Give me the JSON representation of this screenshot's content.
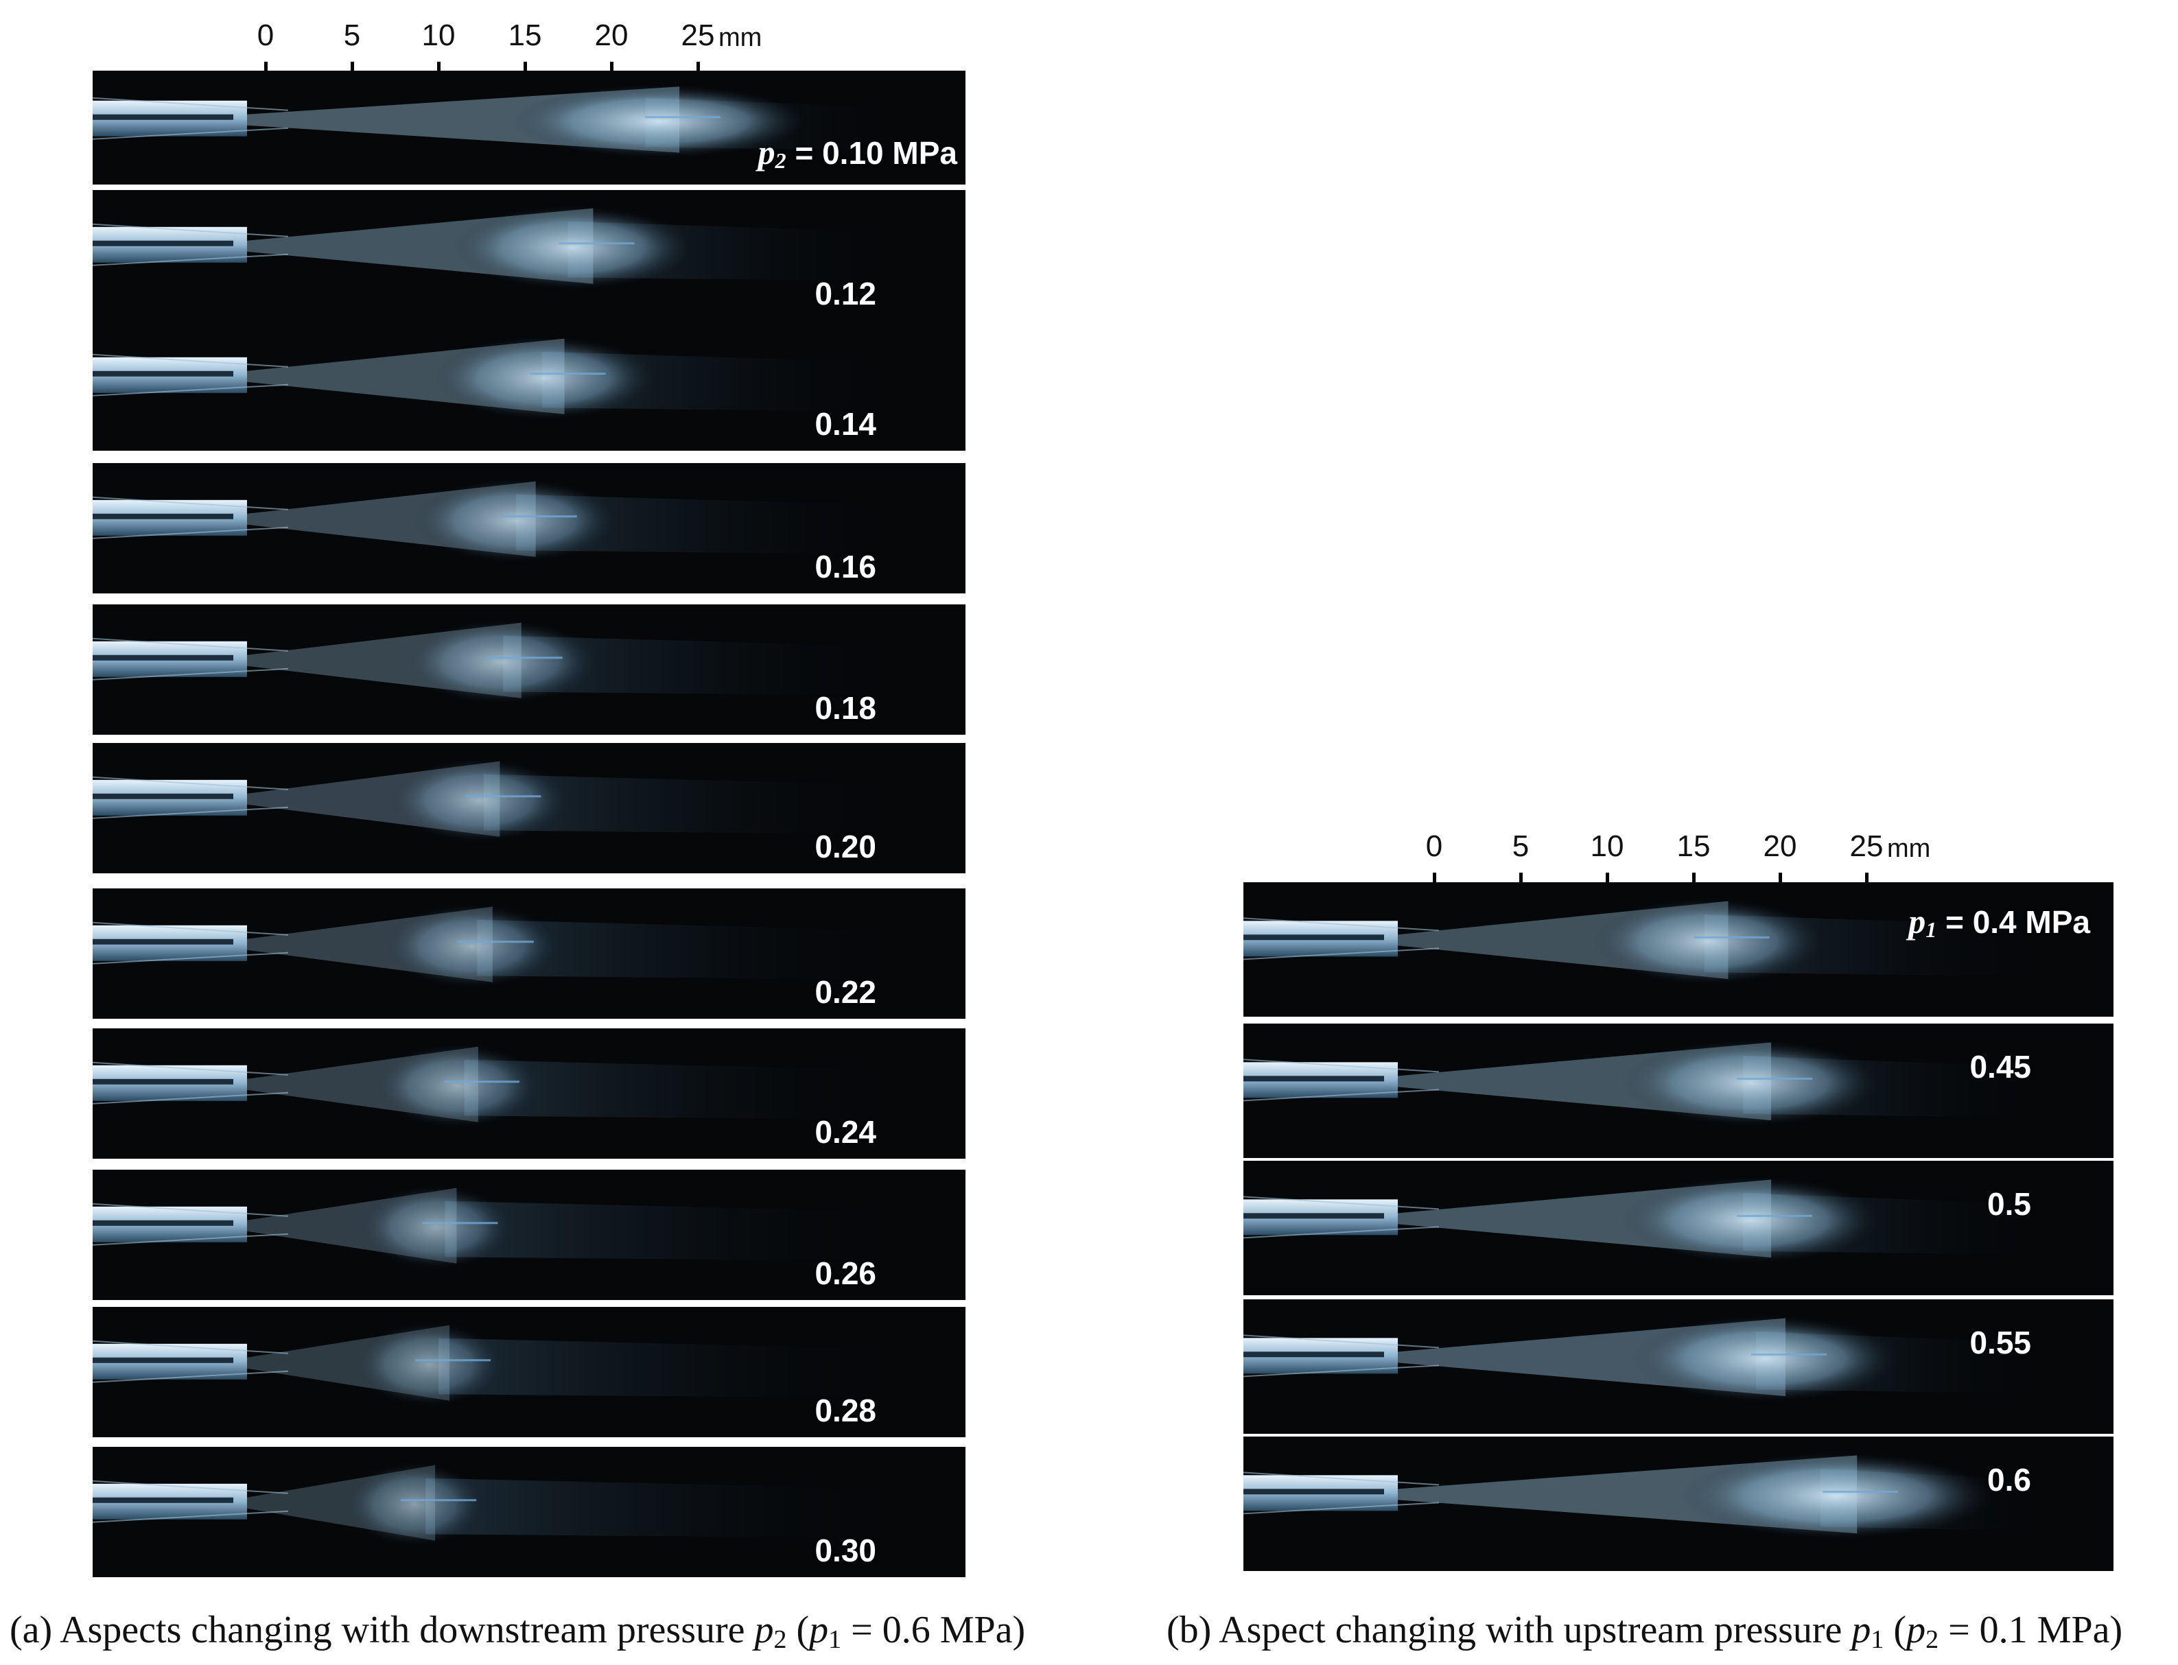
{
  "scale_bar": {
    "ticks": [
      "0",
      "5",
      "10",
      "15",
      "20",
      "25"
    ],
    "unit": "mm"
  },
  "panel_a": {
    "first_label": {
      "symbol": "p",
      "subscript": "2",
      "rest": " = 0.10 MPa"
    },
    "frames": [
      {
        "label": "",
        "plume_length": 0.64,
        "brightness": 1.0
      },
      {
        "label": "0.12",
        "plume_length": 0.52,
        "brightness": 0.92
      },
      {
        "label": "0.14",
        "plume_length": 0.48,
        "brightness": 0.88
      },
      {
        "label": "0.16",
        "plume_length": 0.44,
        "brightness": 0.8
      },
      {
        "label": "0.18",
        "plume_length": 0.42,
        "brightness": 0.75
      },
      {
        "label": "0.20",
        "plume_length": 0.39,
        "brightness": 0.72
      },
      {
        "label": "0.22",
        "plume_length": 0.38,
        "brightness": 0.7
      },
      {
        "label": "0.24",
        "plume_length": 0.36,
        "brightness": 0.68
      },
      {
        "label": "0.26",
        "plume_length": 0.33,
        "brightness": 0.66
      },
      {
        "label": "0.28",
        "plume_length": 0.32,
        "brightness": 0.62
      },
      {
        "label": "0.30",
        "plume_length": 0.3,
        "brightness": 0.6
      }
    ],
    "caption": {
      "prefix": "(a) Aspects changing with downstream pressure ",
      "sym1": "p",
      "sub1": "2",
      "mid": " (",
      "sym2": "p",
      "sub2": "1",
      "suffix": " = 0.6 MPa)"
    }
  },
  "panel_b": {
    "first_label": {
      "symbol": "p",
      "subscript": "1",
      "rest": " = 0.4 MPa"
    },
    "frames": [
      {
        "label": "",
        "plume_length": 0.5,
        "brightness": 0.88
      },
      {
        "label": "0.45",
        "plume_length": 0.56,
        "brightness": 0.92
      },
      {
        "label": "0.5",
        "plume_length": 0.56,
        "brightness": 0.95
      },
      {
        "label": "0.55",
        "plume_length": 0.58,
        "brightness": 0.97
      },
      {
        "label": "0.6",
        "plume_length": 0.68,
        "brightness": 1.0
      }
    ],
    "caption": {
      "prefix": "(b) Aspect changing with upstream pressure ",
      "sym1": "p",
      "sub1": "1",
      "mid": " (",
      "sym2": "p",
      "sub2": "2",
      "suffix": " = 0.1 MPa)"
    }
  },
  "colors": {
    "frame_background": "#050709",
    "plume": "#cfe6f4",
    "nozzle": "#8fb4cf",
    "label": "#ffffff"
  }
}
